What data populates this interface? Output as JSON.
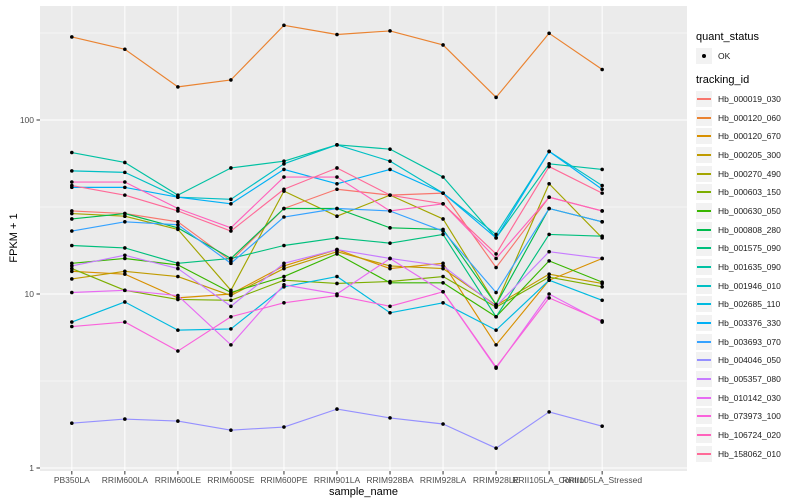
{
  "chart_data": {
    "type": "line",
    "title": "",
    "xlabel": "sample_name",
    "ylabel": "FPKM + 1",
    "y_axis": {
      "scale": "log10",
      "tick_values": [
        1,
        10,
        100
      ],
      "tick_labels": [
        "1",
        "10",
        "100"
      ],
      "minor_tick_values": [
        3.1623,
        31.623,
        316.23
      ],
      "ylim": [
        1,
        440
      ]
    },
    "categories": [
      "PB350LA",
      "RRIM600LA",
      "RRIM600LE",
      "RRIM600SE",
      "RRIM600PE",
      "RRIM901LA",
      "RRIM928BA",
      "RRIM928LA",
      "RRIM928LE",
      "RRII105LA_Control",
      "RRII105LA_Stressed"
    ],
    "legend": {
      "quant_status_title": "quant_status",
      "quant_status_items": [
        "OK"
      ],
      "tracking_id_title": "tracking_id",
      "position": "right"
    },
    "grid": "on",
    "colors": {
      "panel_bg": "#EBEBEB",
      "grid": "#FFFFFF",
      "point": "#000000",
      "tick_mark": "#333333",
      "tick_text": "#4D4D4D",
      "axis_title": "#000000",
      "legend_key_bg": "#F2F2F2"
    },
    "series": [
      {
        "name": "Hb_000019_030",
        "color": "#F8766D",
        "values": [
          30,
          29,
          26,
          15.5,
          31,
          40,
          37,
          38,
          14.2,
          36,
          30
        ]
      },
      {
        "name": "Hb_000120_060",
        "color": "#EA8331",
        "values": [
          300,
          255,
          155,
          170,
          350,
          310,
          325,
          270,
          135,
          315,
          195
        ]
      },
      {
        "name": "Hb_000120_670",
        "color": "#D89000",
        "values": [
          13.5,
          13,
          9.5,
          10,
          14.5,
          18,
          14,
          15,
          5.1,
          12,
          16
        ]
      },
      {
        "name": "Hb_000205_300",
        "color": "#C09B00",
        "values": [
          12.2,
          13.5,
          12.6,
          9.8,
          14,
          17.5,
          14.5,
          14,
          8.6,
          13,
          11.5
        ]
      },
      {
        "name": "Hb_000270_490",
        "color": "#A3A500",
        "values": [
          29,
          28,
          23.5,
          10.5,
          39,
          28,
          37,
          27,
          8.7,
          43,
          21
        ]
      },
      {
        "name": "Hb_000603_150",
        "color": "#7CAE00",
        "values": [
          14,
          10.5,
          9.3,
          9.2,
          12,
          11.5,
          11.8,
          12.6,
          8.4,
          12.5,
          11
        ]
      },
      {
        "name": "Hb_000630_050",
        "color": "#39B600",
        "values": [
          15,
          16,
          14.7,
          10.2,
          12.6,
          17,
          11.6,
          11.6,
          7.4,
          15.5,
          11.7
        ]
      },
      {
        "name": "Hb_000808_280",
        "color": "#00BB4E",
        "values": [
          27,
          29,
          24,
          16,
          31,
          31,
          24,
          23.5,
          8.7,
          31,
          26
        ]
      },
      {
        "name": "Hb_001575_090",
        "color": "#00BF7D",
        "values": [
          19,
          18.4,
          15,
          16,
          19,
          21,
          19.6,
          22,
          7.4,
          22,
          21.5
        ]
      },
      {
        "name": "Hb_001635_090",
        "color": "#00C1A3",
        "values": [
          65,
          57,
          37,
          53,
          58,
          72,
          68,
          47,
          21,
          56,
          52
        ]
      },
      {
        "name": "Hb_001946_010",
        "color": "#00BFC4",
        "values": [
          51,
          50,
          36,
          35,
          56,
          72,
          58,
          38,
          22,
          66,
          42
        ]
      },
      {
        "name": "Hb_002685_110",
        "color": "#00BAE0",
        "values": [
          6.9,
          9,
          6.2,
          6.3,
          11,
          12.6,
          7.8,
          8.9,
          6.2,
          12,
          9.2
        ]
      },
      {
        "name": "Hb_003376_330",
        "color": "#00B0F6",
        "values": [
          41,
          41,
          36,
          33,
          52,
          43,
          52,
          38,
          21,
          66,
          40
        ]
      },
      {
        "name": "Hb_003693_070",
        "color": "#35A2FF",
        "values": [
          23,
          26,
          25,
          15,
          27.7,
          31,
          30,
          23,
          10.2,
          31,
          26
        ]
      },
      {
        "name": "Hb_004046_050",
        "color": "#9590FF",
        "values": [
          1.81,
          1.91,
          1.86,
          1.65,
          1.72,
          2.18,
          1.94,
          1.79,
          1.3,
          2.1,
          1.74
        ]
      },
      {
        "name": "Hb_005357_080",
        "color": "#C77CFF",
        "values": [
          14.5,
          16.7,
          14,
          8.5,
          15,
          18,
          16,
          14.5,
          8.5,
          17.5,
          16
        ]
      },
      {
        "name": "Hb_010142_030",
        "color": "#E76BF3",
        "values": [
          10.2,
          10.5,
          9.8,
          5.1,
          11.3,
          10,
          16,
          10.3,
          3.75,
          10,
          6.9
        ]
      },
      {
        "name": "Hb_073973_100",
        "color": "#FA62DB",
        "values": [
          6.5,
          6.9,
          4.7,
          7.4,
          8.9,
          9.8,
          8.5,
          10.3,
          3.8,
          9.5,
          7
        ]
      },
      {
        "name": "Hb_106724_020",
        "color": "#FF62BC",
        "values": [
          44,
          44,
          31,
          24,
          47,
          47,
          30,
          33,
          16,
          36,
          30
        ]
      },
      {
        "name": "Hb_158062_010",
        "color": "#FF6A98",
        "values": [
          42,
          37,
          30,
          23,
          40,
          53,
          37,
          33,
          17,
          54,
          38
        ]
      }
    ]
  }
}
